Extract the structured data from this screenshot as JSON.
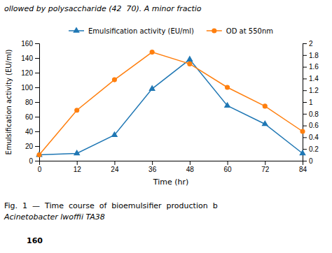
{
  "chart_data": {
    "type": "line",
    "x": [
      0,
      12,
      24,
      36,
      48,
      60,
      72,
      84
    ],
    "series": [
      {
        "name": "Emulsification activity (EU/ml)",
        "values": [
          8,
          10,
          35,
          98,
          138,
          75,
          50,
          10
        ],
        "marker": "triangle"
      },
      {
        "name": "OD at 550nm",
        "values": [
          0.1,
          0.86,
          1.38,
          1.85,
          1.65,
          1.25,
          0.93,
          0.5
        ],
        "marker": "circle",
        "axis": "y2"
      }
    ],
    "xlabel": "Time (hr)",
    "ylabel": "Emulsification activity (EU/ml)",
    "xlim": [
      0,
      84
    ],
    "xticks": [
      0,
      12,
      24,
      36,
      48,
      60,
      72,
      84
    ],
    "ylim": [
      0,
      160
    ],
    "yticks": [
      0,
      20,
      40,
      60,
      80,
      100,
      120,
      140,
      160
    ],
    "y2lim": [
      0,
      2
    ],
    "y2ticks": [
      0,
      0.2,
      0.4,
      0.6,
      0.8,
      1,
      1.2,
      1.4,
      1.6,
      1.8,
      2
    ],
    "grid": false,
    "legend": "upper center",
    "annotations": [
      "ollowed by polysaccharide (42  70). A minor fractio",
      "Fig.  1  —  Time  course  of  bioemulsifier  production  b",
      "Acinetobacter lwoffii TA38",
      "160"
    ]
  }
}
